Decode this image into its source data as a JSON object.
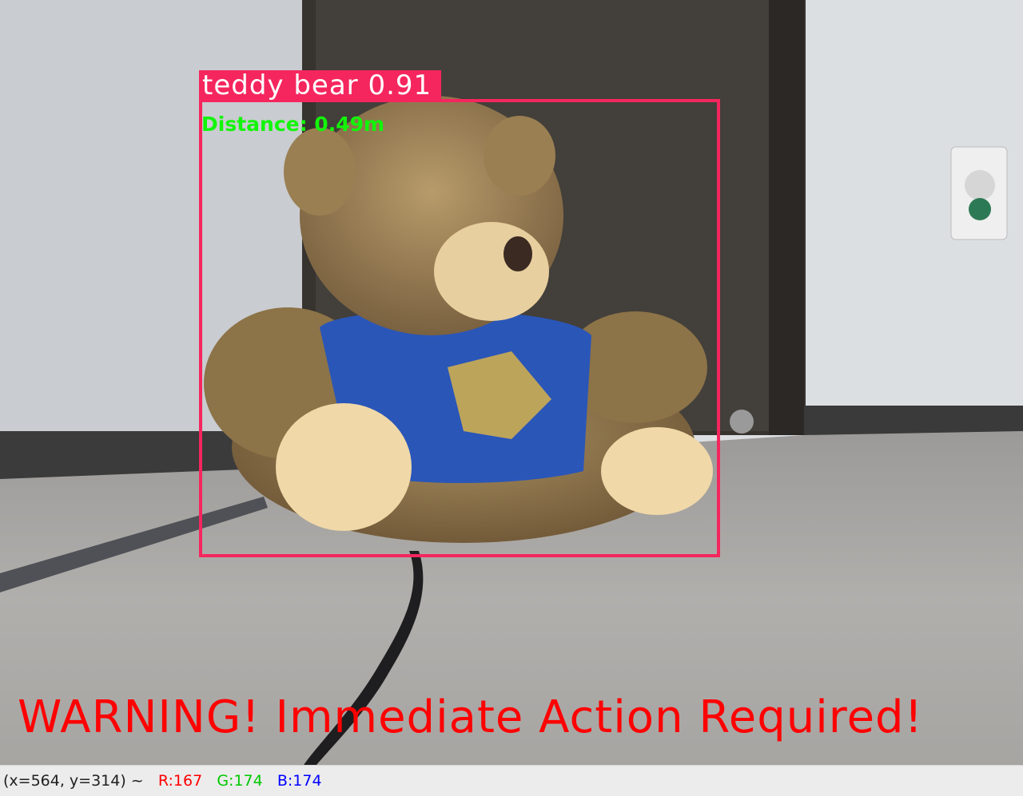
{
  "detection": {
    "label": "teddy bear 0.91",
    "distance": "Distance: 0.49m",
    "box_color": "#f5265e",
    "distance_color": "#12f50a"
  },
  "alert": {
    "text": "WARNING! Immediate Action Required!",
    "color": "#ff0000"
  },
  "status_bar": {
    "coords": "(x=564, y=314) ~",
    "r_label": "R:",
    "r_value": "167",
    "g_label": "G:",
    "g_value": "174",
    "b_label": "B:",
    "b_value": "174",
    "r_color": "#ff0000",
    "g_color": "#00c800",
    "b_color": "#0000ff"
  }
}
